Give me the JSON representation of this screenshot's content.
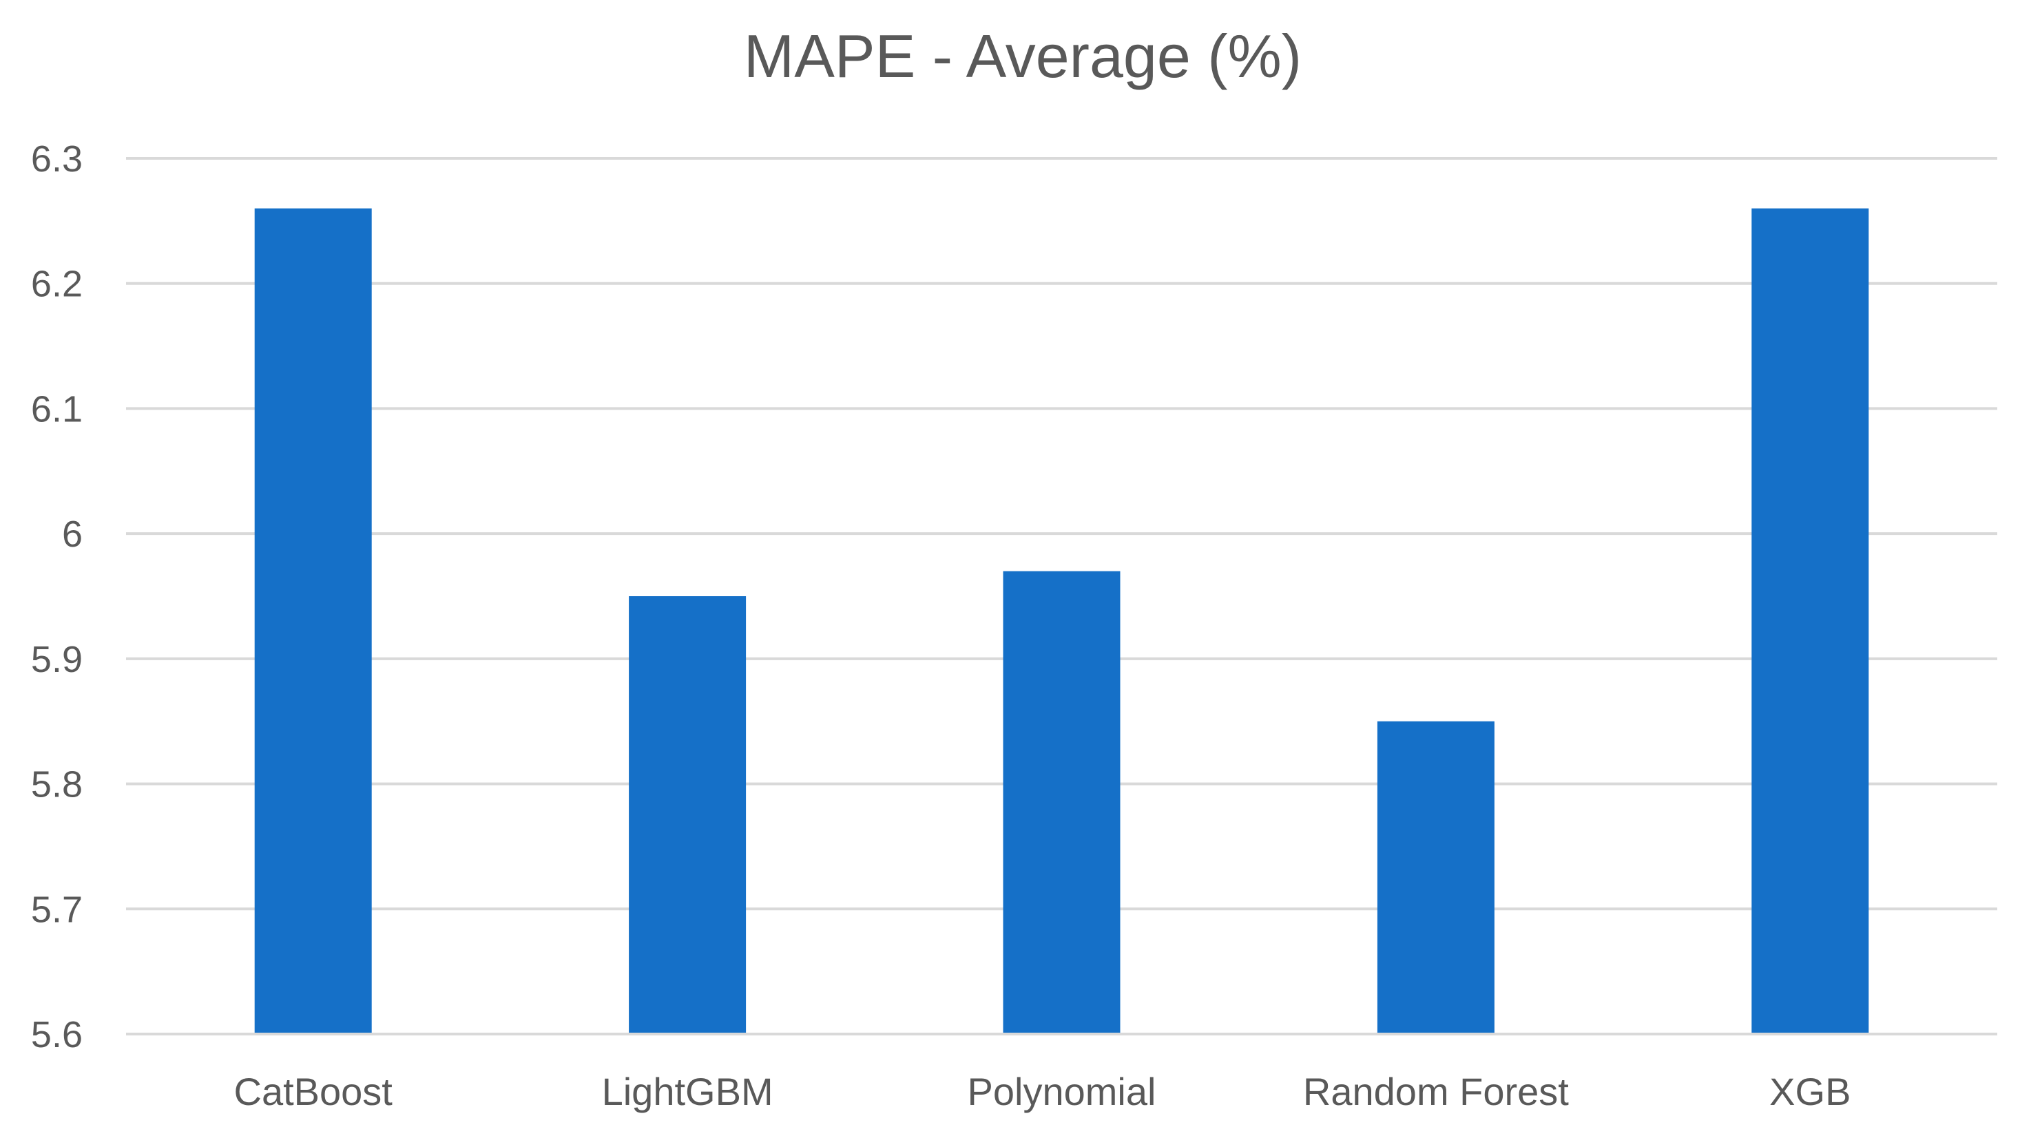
{
  "chart_data": {
    "type": "bar",
    "title": "MAPE - Average (%)",
    "categories": [
      "CatBoost",
      "LightGBM",
      "Polynomial",
      "Random Forest",
      "XGB"
    ],
    "values": [
      6.26,
      5.95,
      5.97,
      5.85,
      6.26
    ],
    "ylim": [
      5.6,
      6.3
    ],
    "yticks": [
      "5.6",
      "5.7",
      "5.8",
      "5.9",
      "6",
      "6.1",
      "6.2",
      "6.3"
    ],
    "xlabel": "",
    "ylabel": "",
    "grid": true,
    "legend": "none",
    "bar_color": "#1570c8",
    "gridline_color": "#d9d9d9",
    "text_color": "#595959"
  }
}
